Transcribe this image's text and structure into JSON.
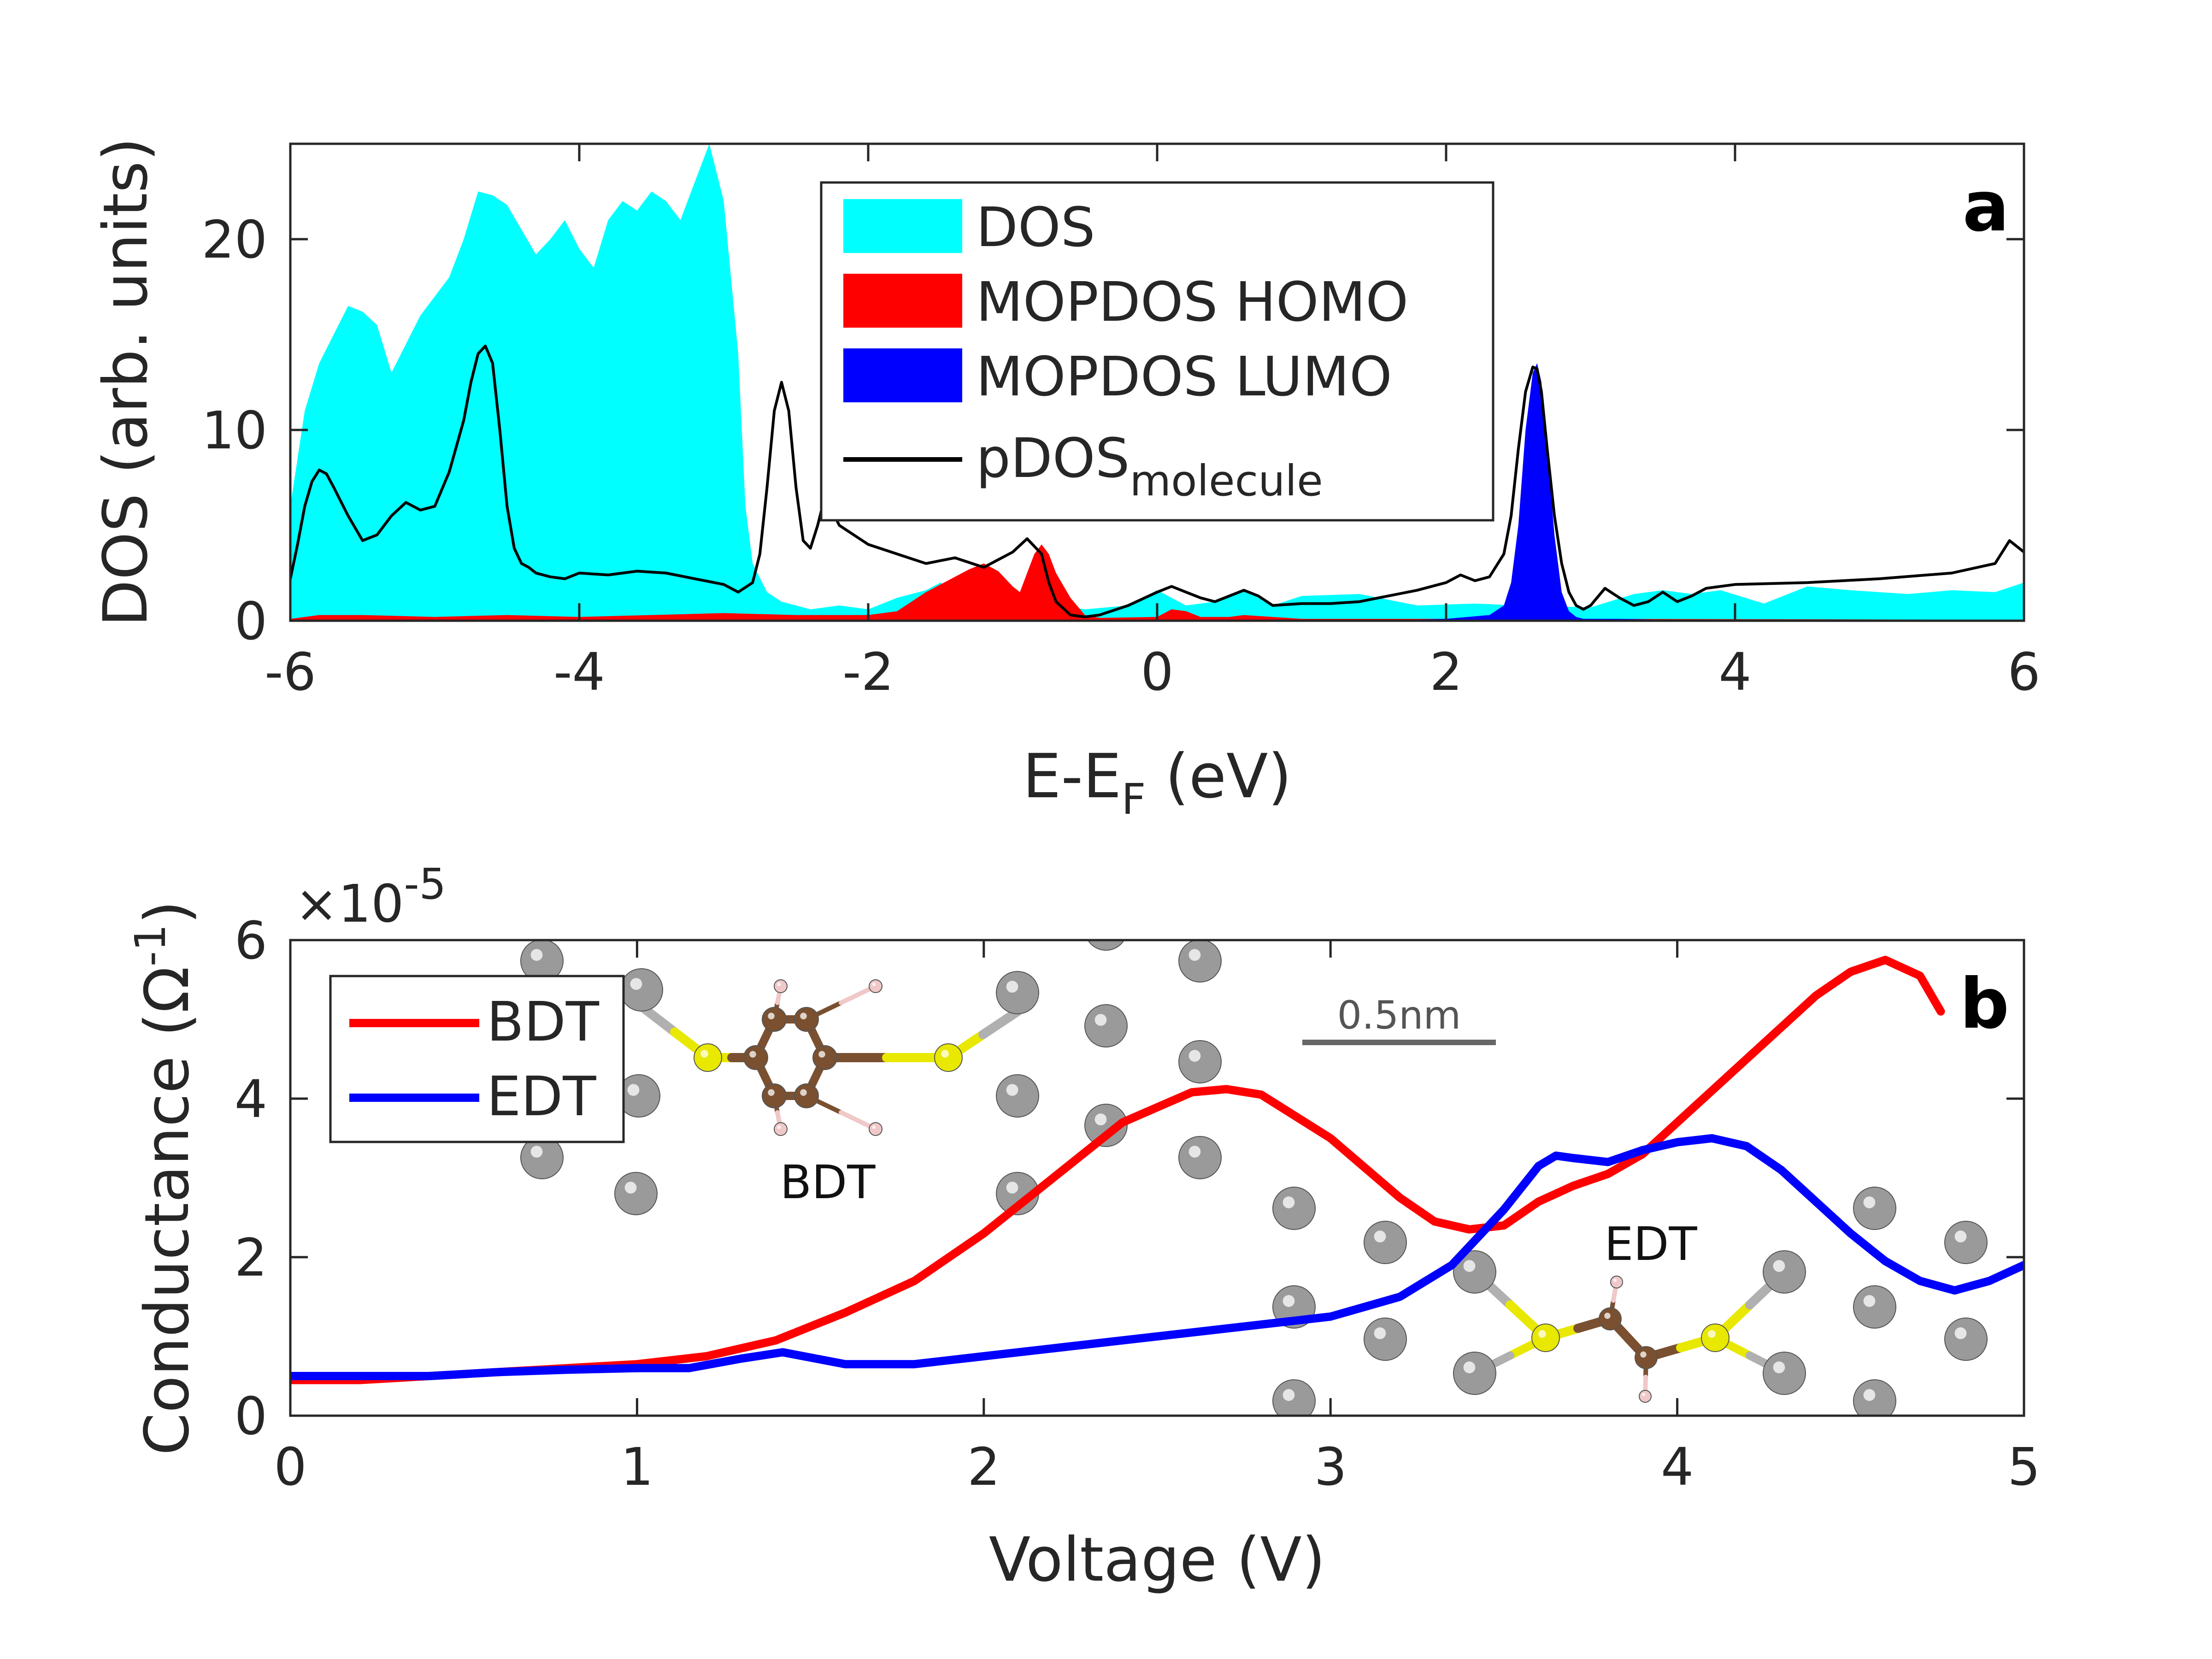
{
  "colors": {
    "dos": "#00ffff",
    "homo": "#ff0000",
    "lumo": "#0000ff",
    "pdos": "#000000",
    "bdt": "#ff0000",
    "edt": "#0000ff",
    "atom_gold": "#9a9a9a",
    "atom_sulfur": "#e8e800",
    "atom_carbon": "#7a5030",
    "atom_hydrogen": "#f0c8c8"
  },
  "chart_data": [
    {
      "panel": "a",
      "type": "area",
      "title": "",
      "xlabel": "E-E",
      "xlabel_sub": "F",
      "xlabel_tail": " (eV)",
      "ylabel": "DOS (arb. units)",
      "xlim": [
        -6,
        6
      ],
      "ylim": [
        0,
        25
      ],
      "xticks": [
        -6,
        -4,
        -2,
        0,
        2,
        4,
        6
      ],
      "yticks": [
        0,
        10,
        20
      ],
      "legend": {
        "position": "top-center",
        "entries": [
          {
            "label": "DOS",
            "style": "fill",
            "color_key": "dos"
          },
          {
            "label": "MOPDOS HOMO",
            "style": "fill",
            "color_key": "homo"
          },
          {
            "label": "MOPDOS LUMO",
            "style": "fill",
            "color_key": "lumo"
          },
          {
            "label": "pDOS",
            "sub": "molecule",
            "style": "line",
            "color_key": "pdos"
          }
        ]
      },
      "series": [
        {
          "name": "DOS",
          "style": "fill",
          "x": [
            -6.0,
            -5.9,
            -5.8,
            -5.7,
            -5.6,
            -5.5,
            -5.4,
            -5.3,
            -5.2,
            -5.1,
            -5.0,
            -4.9,
            -4.8,
            -4.7,
            -4.6,
            -4.5,
            -4.4,
            -4.3,
            -4.2,
            -4.1,
            -4.0,
            -3.9,
            -3.8,
            -3.7,
            -3.6,
            -3.5,
            -3.4,
            -3.3,
            -3.2,
            -3.1,
            -3.0,
            -2.9,
            -2.85,
            -2.8,
            -2.7,
            -2.6,
            -2.5,
            -2.4,
            -2.2,
            -2.0,
            -1.8,
            -1.6,
            -1.5,
            -1.4,
            -1.0,
            -0.5,
            -0.2,
            0.0,
            0.2,
            0.4,
            0.6,
            0.8,
            1.0,
            1.4,
            1.8,
            2.2,
            2.5,
            3.0,
            3.3,
            3.5,
            3.7,
            3.9,
            4.2,
            4.5,
            4.8,
            5.2,
            5.5,
            5.8,
            6.0
          ],
          "y": [
            6,
            11,
            13.5,
            15,
            16.5,
            16.2,
            15.5,
            13,
            14.5,
            16,
            17,
            18,
            20,
            22.5,
            22.3,
            21.8,
            20.5,
            19.2,
            20,
            21,
            19.5,
            18.5,
            21,
            22,
            21.5,
            22.5,
            22,
            21,
            23,
            25,
            22,
            14,
            6,
            3,
            1.5,
            1,
            0.8,
            0.6,
            0.8,
            0.6,
            1.2,
            1.6,
            2,
            1.5,
            1.2,
            0.6,
            0.8,
            1.6,
            0.8,
            1,
            1.6,
            0.8,
            1.3,
            1.4,
            0.8,
            0.9,
            0.8,
            0.7,
            1.4,
            1.6,
            1.4,
            1.6,
            0.9,
            1.8,
            1.6,
            1.4,
            1.6,
            1.5,
            2.0
          ]
        },
        {
          "name": "MOPDOS HOMO",
          "style": "fill",
          "x": [
            -6.0,
            -5.8,
            -5.5,
            -5.0,
            -4.5,
            -4.0,
            -3.5,
            -3.0,
            -2.5,
            -2.0,
            -1.8,
            -1.6,
            -1.4,
            -1.3,
            -1.2,
            -1.1,
            -1.0,
            -0.95,
            -0.9,
            -0.85,
            -0.8,
            -0.75,
            -0.7,
            -0.6,
            -0.5,
            -0.4,
            0.0,
            0.1,
            0.2,
            0.3,
            0.5,
            0.6,
            0.8,
            1.0,
            2.0,
            3.0,
            6.0
          ],
          "y": [
            0.1,
            0.3,
            0.3,
            0.2,
            0.3,
            0.2,
            0.3,
            0.4,
            0.3,
            0.3,
            0.5,
            1.5,
            2.3,
            2.7,
            3.0,
            2.6,
            1.8,
            1.5,
            2.5,
            3.5,
            4.0,
            3.5,
            2.5,
            1.2,
            0.3,
            0.15,
            0.2,
            0.6,
            0.5,
            0.2,
            0.2,
            0.3,
            0.2,
            0.1,
            0.1,
            0.1,
            0.05
          ]
        },
        {
          "name": "MOPDOS LUMO",
          "style": "fill",
          "x": [
            1.5,
            2.0,
            2.3,
            2.4,
            2.45,
            2.5,
            2.55,
            2.6,
            2.63,
            2.66,
            2.7,
            2.75,
            2.8,
            2.85,
            2.9,
            2.95,
            3.0,
            3.2,
            3.5,
            4.0
          ],
          "y": [
            0,
            0.1,
            0.3,
            0.8,
            2.0,
            5.0,
            10,
            13,
            13.5,
            12.5,
            9,
            4.5,
            1.5,
            0.5,
            0.2,
            0.1,
            0.1,
            0.1,
            0.05,
            0
          ]
        },
        {
          "name": "pDOS_molecule",
          "style": "line",
          "x": [
            -6.0,
            -5.95,
            -5.9,
            -5.85,
            -5.8,
            -5.75,
            -5.7,
            -5.6,
            -5.5,
            -5.4,
            -5.3,
            -5.2,
            -5.1,
            -5.0,
            -4.9,
            -4.8,
            -4.75,
            -4.7,
            -4.65,
            -4.6,
            -4.55,
            -4.5,
            -4.45,
            -4.4,
            -4.35,
            -4.3,
            -4.25,
            -4.2,
            -4.1,
            -4.0,
            -3.8,
            -3.6,
            -3.4,
            -3.2,
            -3.0,
            -2.9,
            -2.8,
            -2.75,
            -2.7,
            -2.65,
            -2.6,
            -2.55,
            -2.5,
            -2.45,
            -2.4,
            -2.35,
            -2.3,
            -2.2,
            -2.0,
            -1.8,
            -1.6,
            -1.4,
            -1.2,
            -1.0,
            -0.9,
            -0.8,
            -0.75,
            -0.7,
            -0.6,
            -0.5,
            -0.4,
            -0.2,
            0.0,
            0.1,
            0.2,
            0.3,
            0.4,
            0.5,
            0.6,
            0.7,
            0.8,
            1.0,
            1.2,
            1.4,
            1.6,
            1.8,
            2.0,
            2.1,
            2.2,
            2.3,
            2.4,
            2.45,
            2.5,
            2.55,
            2.6,
            2.63,
            2.66,
            2.7,
            2.75,
            2.8,
            2.85,
            2.9,
            2.95,
            3.0,
            3.1,
            3.2,
            3.3,
            3.4,
            3.5,
            3.6,
            3.7,
            3.8,
            4.0,
            4.5,
            5.0,
            5.5,
            5.8,
            5.9,
            6.0
          ],
          "y": [
            2.2,
            4.0,
            6.0,
            7.3,
            7.9,
            7.7,
            7.0,
            5.5,
            4.2,
            4.5,
            5.5,
            6.2,
            5.8,
            6.0,
            7.8,
            10.5,
            12.5,
            14.0,
            14.4,
            13.5,
            10.0,
            6.0,
            3.8,
            3.0,
            2.8,
            2.5,
            2.4,
            2.3,
            2.2,
            2.5,
            2.4,
            2.6,
            2.5,
            2.2,
            1.9,
            1.5,
            2.0,
            3.5,
            7.0,
            11.0,
            12.5,
            11.0,
            7.0,
            4.2,
            3.8,
            5.0,
            6.5,
            5.0,
            4.0,
            3.5,
            3.0,
            3.3,
            2.8,
            3.6,
            4.3,
            3.5,
            2.0,
            1.0,
            0.3,
            0.2,
            0.3,
            0.8,
            1.5,
            1.8,
            1.5,
            1.2,
            1.0,
            1.3,
            1.6,
            1.3,
            0.8,
            0.9,
            0.9,
            1.0,
            1.3,
            1.6,
            2.0,
            2.4,
            2.1,
            2.3,
            3.5,
            5.5,
            9.0,
            12.0,
            13.3,
            13.2,
            12.0,
            9.0,
            5.5,
            3.0,
            1.5,
            0.8,
            0.6,
            0.8,
            1.7,
            1.2,
            0.8,
            1.0,
            1.5,
            1.0,
            1.3,
            1.7,
            1.9,
            2.0,
            2.2,
            2.5,
            3.0,
            4.2,
            3.6
          ]
        }
      ]
    },
    {
      "panel": "b",
      "type": "line",
      "title": "",
      "xlabel": "Voltage (V)",
      "ylabel": "Conductance (Ω",
      "ylabel_exp": "-1",
      "ylabel_tail": ")",
      "exponent_label": "×10",
      "exponent_power": "-5",
      "y_scale": 1e-05,
      "xlim": [
        0,
        5
      ],
      "ylim": [
        0,
        6
      ],
      "xticks": [
        0,
        1,
        2,
        3,
        4,
        5
      ],
      "yticks": [
        0,
        2,
        4,
        6
      ],
      "legend": {
        "position": "top-left",
        "entries": [
          {
            "label": "BDT",
            "style": "line",
            "color_key": "bdt"
          },
          {
            "label": "EDT",
            "style": "line",
            "color_key": "edt"
          }
        ]
      },
      "series": [
        {
          "name": "BDT",
          "x": [
            0.0,
            0.2,
            0.4,
            0.6,
            0.8,
            1.0,
            1.2,
            1.4,
            1.6,
            1.8,
            2.0,
            2.2,
            2.4,
            2.6,
            2.7,
            2.8,
            3.0,
            3.2,
            3.3,
            3.4,
            3.5,
            3.6,
            3.7,
            3.8,
            3.9,
            4.0,
            4.2,
            4.4,
            4.5,
            4.6,
            4.7,
            4.76
          ],
          "y": [
            0.45,
            0.45,
            0.5,
            0.55,
            0.6,
            0.65,
            0.75,
            0.95,
            1.3,
            1.7,
            2.3,
            3.0,
            3.7,
            4.08,
            4.12,
            4.05,
            3.5,
            2.75,
            2.45,
            2.35,
            2.4,
            2.7,
            2.9,
            3.05,
            3.3,
            3.7,
            4.5,
            5.3,
            5.6,
            5.75,
            5.55,
            5.1
          ]
        },
        {
          "name": "EDT",
          "x": [
            0.0,
            0.2,
            0.4,
            0.6,
            0.8,
            1.0,
            1.15,
            1.3,
            1.42,
            1.6,
            1.8,
            2.0,
            2.2,
            2.4,
            2.6,
            2.8,
            3.0,
            3.2,
            3.35,
            3.5,
            3.6,
            3.65,
            3.7,
            3.8,
            3.9,
            4.0,
            4.1,
            4.2,
            4.3,
            4.4,
            4.5,
            4.6,
            4.7,
            4.8,
            4.9,
            5.0
          ],
          "y": [
            0.5,
            0.5,
            0.5,
            0.55,
            0.58,
            0.6,
            0.6,
            0.72,
            0.8,
            0.65,
            0.65,
            0.75,
            0.85,
            0.95,
            1.05,
            1.15,
            1.25,
            1.5,
            1.9,
            2.6,
            3.15,
            3.28,
            3.25,
            3.2,
            3.35,
            3.45,
            3.5,
            3.4,
            3.1,
            2.7,
            2.3,
            1.95,
            1.7,
            1.58,
            1.7,
            1.9
          ]
        }
      ],
      "annotations": {
        "scale_bar": "0.5nm",
        "molecule_bdt": "BDT",
        "molecule_edt": "EDT"
      }
    }
  ]
}
